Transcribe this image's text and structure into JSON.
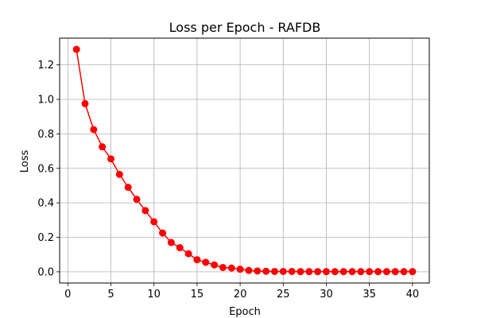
{
  "chart_data": {
    "type": "line",
    "title": "Loss per Epoch - RAFDB",
    "xlabel": "Epoch",
    "ylabel": "Loss",
    "xlim": [
      -0.95,
      41.95
    ],
    "ylim": [
      -0.065,
      1.355
    ],
    "xticks": [
      0,
      5,
      10,
      15,
      20,
      25,
      30,
      35,
      40
    ],
    "yticks": [
      0.0,
      0.2,
      0.4,
      0.6,
      0.8,
      1.0,
      1.2
    ],
    "xtick_labels": [
      "0",
      "5",
      "10",
      "15",
      "20",
      "25",
      "30",
      "35",
      "40"
    ],
    "ytick_labels": [
      "0.0",
      "0.2",
      "0.4",
      "0.6",
      "0.8",
      "1.0",
      "1.2"
    ],
    "grid": true,
    "legend": "none",
    "series": [
      {
        "color": "#ff0000",
        "marker": "circle",
        "x": [
          1,
          2,
          3,
          4,
          5,
          6,
          7,
          8,
          9,
          10,
          11,
          12,
          13,
          14,
          15,
          16,
          17,
          18,
          19,
          20,
          21,
          22,
          23,
          24,
          25,
          26,
          27,
          28,
          29,
          30,
          31,
          32,
          33,
          34,
          35,
          36,
          37,
          38,
          39,
          40
        ],
        "y": [
          1.29,
          0.975,
          0.825,
          0.725,
          0.655,
          0.565,
          0.49,
          0.42,
          0.355,
          0.29,
          0.225,
          0.17,
          0.14,
          0.105,
          0.07,
          0.055,
          0.04,
          0.025,
          0.022,
          0.015,
          0.008,
          0.005,
          0.003,
          0.002,
          0.002,
          0.002,
          0.001,
          0.001,
          0.001,
          0.001,
          0.001,
          0.001,
          0.001,
          0.001,
          0.001,
          0.001,
          0.001,
          0.001,
          0.001,
          0.001
        ]
      }
    ]
  }
}
